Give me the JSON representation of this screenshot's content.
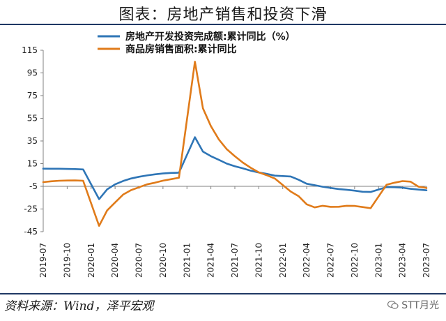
{
  "header": {
    "title": "图表：房地产销售和投资下滑"
  },
  "footer": {
    "source": "资料来源：Wind，泽平宏观",
    "watermark": "STT月光"
  },
  "colors": {
    "series_blue": "#2e75b6",
    "series_orange": "#e07b1a",
    "frame": "#1f3864"
  },
  "chart_data": {
    "type": "line",
    "ylim": [
      -45,
      115
    ],
    "yticks": [
      115,
      95,
      75,
      55,
      35,
      15,
      -5,
      -25,
      -45
    ],
    "xticks": [
      "2019-07",
      "2019-10",
      "2020-01",
      "2020-04",
      "2020-07",
      "2020-10",
      "2021-01",
      "2021-04",
      "2021-07",
      "2021-10",
      "2022-01",
      "2022-04",
      "2022-07",
      "2022-10",
      "2023-01",
      "2023-04",
      "2023-07"
    ],
    "legend": {
      "placement": "top"
    },
    "grid": false,
    "series": [
      {
        "name": "房地产开发投资完成额:累计同比（%）",
        "color": "#2e75b6",
        "points": [
          [
            "2019-07",
            10.6
          ],
          [
            "2019-08",
            10.5
          ],
          [
            "2019-09",
            10.5
          ],
          [
            "2019-10",
            10.3
          ],
          [
            "2019-11",
            10.2
          ],
          [
            "2019-12",
            9.9
          ],
          [
            "2020-02",
            -16.3
          ],
          [
            "2020-03",
            -7.7
          ],
          [
            "2020-04",
            -3.3
          ],
          [
            "2020-05",
            -0.3
          ],
          [
            "2020-06",
            1.9
          ],
          [
            "2020-07",
            3.4
          ],
          [
            "2020-08",
            4.6
          ],
          [
            "2020-09",
            5.6
          ],
          [
            "2020-10",
            6.3
          ],
          [
            "2020-11",
            6.8
          ],
          [
            "2020-12",
            7.0
          ],
          [
            "2021-02",
            38.3
          ],
          [
            "2021-03",
            25.6
          ],
          [
            "2021-04",
            21.6
          ],
          [
            "2021-05",
            18.3
          ],
          [
            "2021-06",
            15.0
          ],
          [
            "2021-07",
            12.7
          ],
          [
            "2021-08",
            10.9
          ],
          [
            "2021-09",
            8.8
          ],
          [
            "2021-10",
            7.2
          ],
          [
            "2021-11",
            6.0
          ],
          [
            "2021-12",
            4.4
          ],
          [
            "2022-02",
            3.7
          ],
          [
            "2022-03",
            0.7
          ],
          [
            "2022-04",
            -2.7
          ],
          [
            "2022-05",
            -4.0
          ],
          [
            "2022-06",
            -5.4
          ],
          [
            "2022-07",
            -6.4
          ],
          [
            "2022-08",
            -7.4
          ],
          [
            "2022-09",
            -8.0
          ],
          [
            "2022-10",
            -8.8
          ],
          [
            "2022-11",
            -9.8
          ],
          [
            "2022-12",
            -10.0
          ],
          [
            "2023-02",
            -5.7
          ],
          [
            "2023-03",
            -5.8
          ],
          [
            "2023-04",
            -6.2
          ],
          [
            "2023-05",
            -7.2
          ],
          [
            "2023-06",
            -7.9
          ],
          [
            "2023-07",
            -8.5
          ]
        ]
      },
      {
        "name": "商品房销售面积:累计同比",
        "color": "#e07b1a",
        "points": [
          [
            "2019-07",
            -1.3
          ],
          [
            "2019-08",
            -0.6
          ],
          [
            "2019-09",
            -0.1
          ],
          [
            "2019-10",
            0.1
          ],
          [
            "2019-11",
            0.2
          ],
          [
            "2019-12",
            -0.1
          ],
          [
            "2020-02",
            -39.9
          ],
          [
            "2020-03",
            -26.3
          ],
          [
            "2020-04",
            -19.3
          ],
          [
            "2020-05",
            -12.3
          ],
          [
            "2020-06",
            -8.4
          ],
          [
            "2020-07",
            -5.8
          ],
          [
            "2020-08",
            -3.3
          ],
          [
            "2020-09",
            -1.8
          ],
          [
            "2020-10",
            0.0
          ],
          [
            "2020-11",
            1.3
          ],
          [
            "2020-12",
            2.6
          ],
          [
            "2021-02",
            104.9
          ],
          [
            "2021-03",
            63.8
          ],
          [
            "2021-04",
            48.1
          ],
          [
            "2021-05",
            36.3
          ],
          [
            "2021-06",
            27.7
          ],
          [
            "2021-07",
            21.5
          ],
          [
            "2021-08",
            15.9
          ],
          [
            "2021-09",
            11.3
          ],
          [
            "2021-10",
            7.3
          ],
          [
            "2021-11",
            4.8
          ],
          [
            "2021-12",
            1.9
          ],
          [
            "2022-02",
            -9.6
          ],
          [
            "2022-03",
            -13.8
          ],
          [
            "2022-04",
            -20.9
          ],
          [
            "2022-05",
            -23.6
          ],
          [
            "2022-06",
            -22.2
          ],
          [
            "2022-07",
            -23.1
          ],
          [
            "2022-08",
            -23.0
          ],
          [
            "2022-09",
            -22.2
          ],
          [
            "2022-10",
            -22.3
          ],
          [
            "2022-11",
            -23.3
          ],
          [
            "2022-12",
            -24.3
          ],
          [
            "2023-02",
            -3.6
          ],
          [
            "2023-03",
            -1.8
          ],
          [
            "2023-04",
            -0.4
          ],
          [
            "2023-05",
            -0.9
          ],
          [
            "2023-06",
            -5.3
          ],
          [
            "2023-07",
            -6.5
          ]
        ]
      }
    ]
  }
}
